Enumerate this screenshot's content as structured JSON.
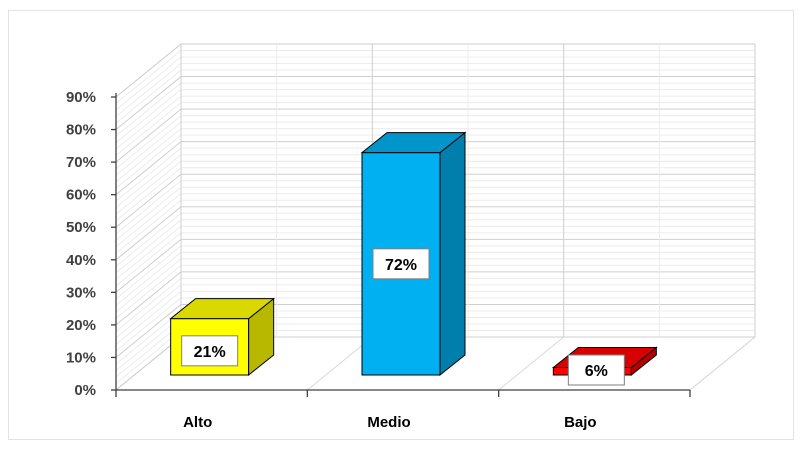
{
  "chart_data": {
    "type": "bar",
    "three_d": true,
    "categories": [
      "Alto",
      "Medio",
      "Bajo"
    ],
    "values": [
      21,
      72,
      6
    ],
    "data_labels": [
      "21%",
      "72%",
      "6%"
    ],
    "colors": [
      "#FFFF00",
      "#00B0F0",
      "#FF0000"
    ],
    "ylim": [
      0,
      90
    ],
    "yticks": [
      "0%",
      "10%",
      "20%",
      "30%",
      "40%",
      "50%",
      "60%",
      "70%",
      "80%",
      "90%"
    ],
    "grid": true,
    "legend": "none",
    "title": "",
    "xlabel": "",
    "ylabel": ""
  }
}
